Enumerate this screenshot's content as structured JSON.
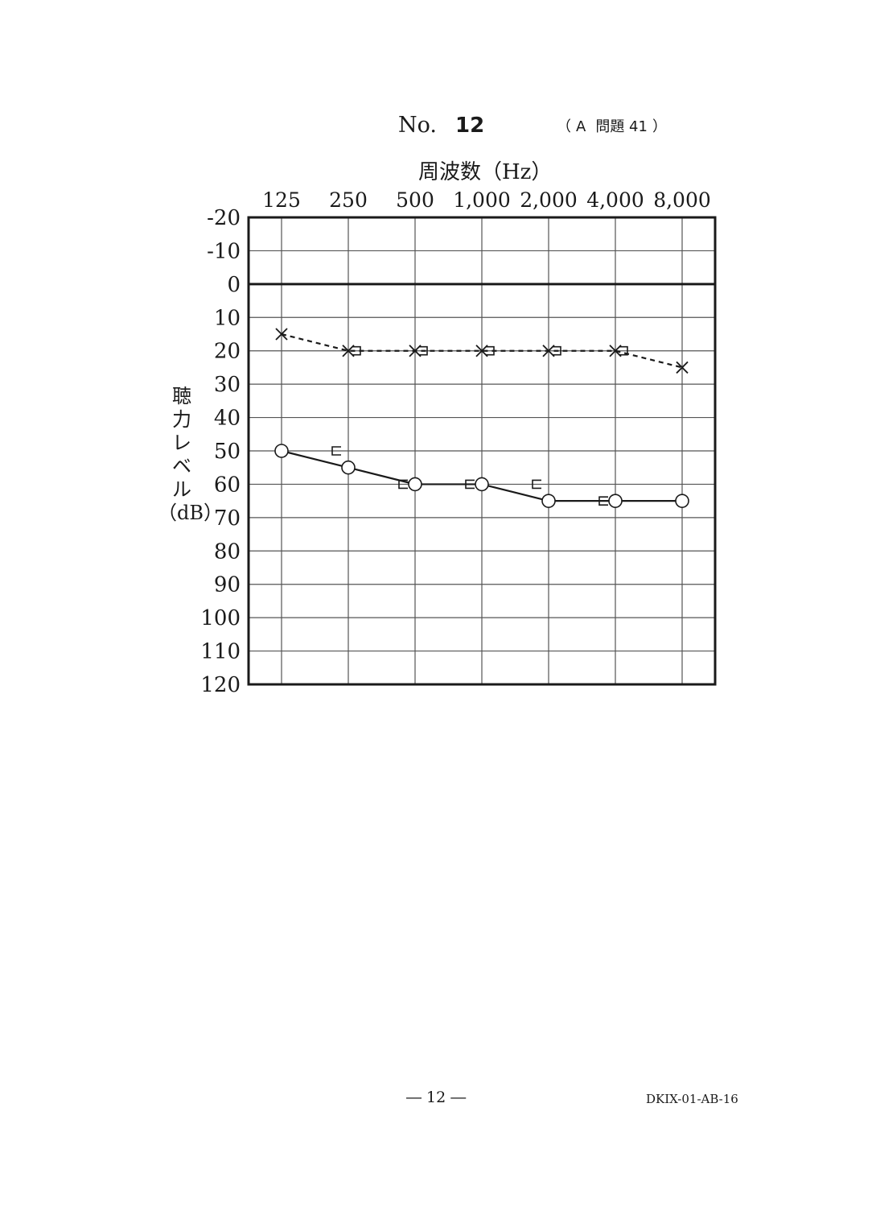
{
  "header": {
    "no_label": "No.",
    "no_value": "12",
    "question_ref": {
      "open": "（",
      "section": "A",
      "problem": "問題 41",
      "close": "）"
    }
  },
  "footer": {
    "page_number": "― 12 ―",
    "doc_code": "DKIX-01-AB-16"
  },
  "chart_data": {
    "type": "line",
    "title": "",
    "xlabel": "周波数（Hz）",
    "ylabel_chars": [
      "聴",
      "力",
      "レ",
      "ベ",
      "ル",
      "（dB）"
    ],
    "categories": [
      "125",
      "250",
      "500",
      "1,000",
      "2,000",
      "4,000",
      "8,000"
    ],
    "y_ticks": [
      "-20",
      "-10",
      "0",
      "10",
      "20",
      "30",
      "40",
      "50",
      "60",
      "70",
      "80",
      "90",
      "100",
      "110",
      "120"
    ],
    "ylim": [
      -20,
      120
    ],
    "y_inverted": true,
    "grid": true,
    "reference_line": 0,
    "series": [
      {
        "marker": "circle",
        "line": "solid",
        "values": [
          50,
          55,
          60,
          60,
          65,
          65,
          65
        ]
      },
      {
        "marker": "cross",
        "line": "dashed",
        "values": [
          15,
          20,
          20,
          20,
          20,
          20,
          25
        ]
      },
      {
        "marker": "bracket-left",
        "line": "none",
        "points": [
          [
            "250",
            50
          ],
          [
            "500",
            60
          ],
          [
            "1,000",
            60
          ],
          [
            "2,000",
            60
          ],
          [
            "4,000",
            65
          ]
        ]
      },
      {
        "marker": "bracket-right",
        "line": "none",
        "points": [
          [
            "250",
            20
          ],
          [
            "500",
            20
          ],
          [
            "1,000",
            20
          ],
          [
            "2,000",
            20
          ],
          [
            "4,000",
            20
          ]
        ]
      }
    ],
    "colors": {
      "ink": "#1a1a1a",
      "grid": "#555555"
    }
  }
}
